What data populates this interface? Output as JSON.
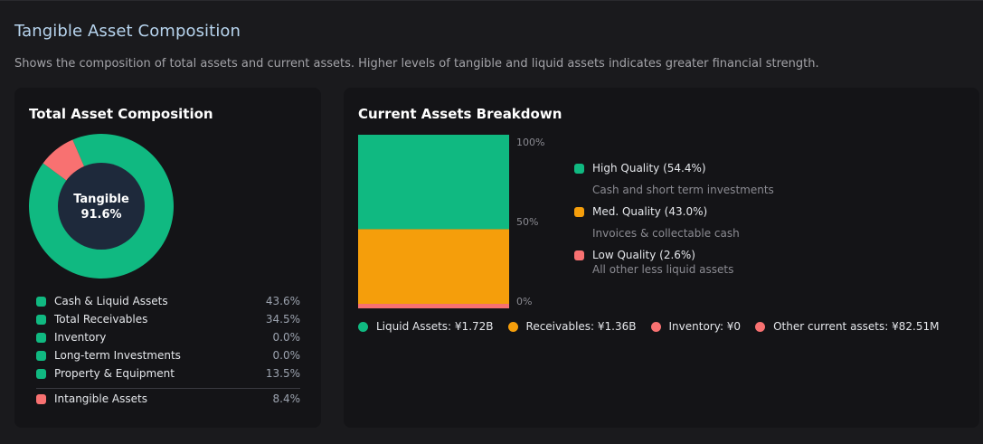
{
  "page": {
    "title": "Tangible Asset Composition",
    "description": "Shows the composition of total assets and current assets. Higher levels of tangible and liquid assets indicates greater financial strength."
  },
  "colors": {
    "green": "#10b981",
    "orange": "#f59e0b",
    "red": "#f87171",
    "donut_center": "#1e293b"
  },
  "left_card": {
    "title": "Total Asset Composition",
    "center_label": "Tangible",
    "center_value": "91.6%",
    "legend": [
      {
        "label": "Cash & Liquid Assets",
        "pct": "43.6%",
        "color": "#10b981"
      },
      {
        "label": "Total Receivables",
        "pct": "34.5%",
        "color": "#10b981"
      },
      {
        "label": "Inventory",
        "pct": "0.0%",
        "color": "#10b981"
      },
      {
        "label": "Long-term Investments",
        "pct": "0.0%",
        "color": "#10b981"
      },
      {
        "label": "Property & Equipment",
        "pct": "13.5%",
        "color": "#10b981"
      }
    ],
    "intangible": {
      "label": "Intangible Assets",
      "pct": "8.4%",
      "color": "#f87171"
    }
  },
  "right_card": {
    "title": "Current Assets Breakdown",
    "ticks": [
      "100%",
      "50%",
      "0%"
    ],
    "quality": [
      {
        "label": "High Quality (54.4%)",
        "sub": "Cash and short term investments",
        "color": "#10b981"
      },
      {
        "label": "Med. Quality (43.0%)",
        "sub": "Invoices & collectable cash",
        "color": "#f59e0b"
      },
      {
        "label": "Low Quality (2.6%)",
        "sub": "All other less liquid assets",
        "color": "#f87171"
      }
    ],
    "bottom_legend": [
      {
        "label": "Liquid Assets: ¥1.72B",
        "color": "#10b981"
      },
      {
        "label": "Receivables: ¥1.36B",
        "color": "#f59e0b"
      },
      {
        "label": "Inventory: ¥0",
        "color": "#f87171"
      },
      {
        "label": "Other current assets: ¥82.51M",
        "color": "#f87171"
      }
    ]
  },
  "chart_data": [
    {
      "type": "pie",
      "title": "Total Asset Composition",
      "categories": [
        "Tangible",
        "Intangible Assets"
      ],
      "values": [
        91.6,
        8.4
      ],
      "colors": [
        "#10b981",
        "#f87171"
      ]
    },
    {
      "type": "bar",
      "title": "Current Assets Breakdown",
      "stacked": true,
      "categories": [
        "Current Assets"
      ],
      "series": [
        {
          "name": "High Quality",
          "values": [
            54.4
          ],
          "color": "#10b981"
        },
        {
          "name": "Med. Quality",
          "values": [
            43.0
          ],
          "color": "#f59e0b"
        },
        {
          "name": "Low Quality",
          "values": [
            2.6
          ],
          "color": "#f87171"
        }
      ],
      "ylim": [
        0,
        100
      ],
      "ylabel": ""
    }
  ]
}
